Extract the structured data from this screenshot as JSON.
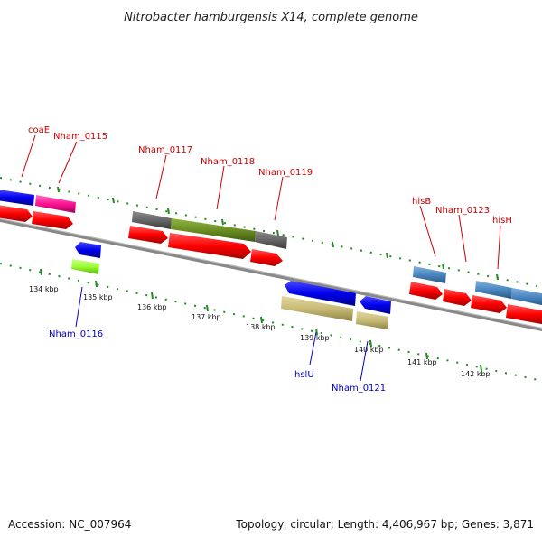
{
  "title": "Nitrobacter hamburgensis X14, complete genome",
  "footer": {
    "accession": "Accession: NC_007964",
    "summary": "Topology: circular; Length: 4,406,967 bp; Genes: 3,871"
  },
  "ticks": [
    "134 kbp",
    "135 kbp",
    "136 kbp",
    "137 kbp",
    "138 kbp",
    "139 kbp",
    "140 kbp",
    "141 kbp",
    "142 kbp"
  ],
  "gene_labels_top": [
    "coaE",
    "Nham_0115",
    "Nham_0117",
    "Nham_0118",
    "Nham_0119",
    "hisB",
    "Nham_0123",
    "hisH"
  ],
  "gene_labels_bottom": [
    "Nham_0116",
    "hslU",
    "Nham_0121"
  ],
  "colors": {
    "cds_red": "#ff0000",
    "blue": "#0000ee",
    "magenta": "#ff1493",
    "grey": "#666666",
    "olive": "#6b8e23",
    "tan": "#c8bb78",
    "steel_blue": "#4a86bf",
    "lime": "#99ff33",
    "ruler_green": "#228b22",
    "backbone": "#888888"
  }
}
